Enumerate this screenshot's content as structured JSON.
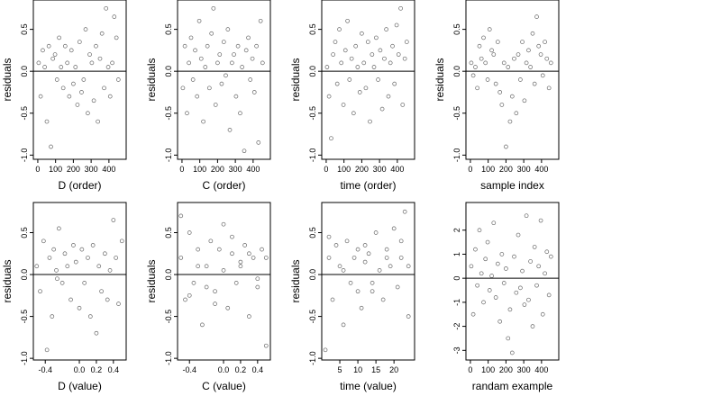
{
  "chart_data": [
    {
      "type": "scatter",
      "xlabel": "D (order)",
      "ylabel": "residuals",
      "color": "#333333",
      "hline": 0,
      "xlim": [
        -25,
        497
      ],
      "ylim": [
        -1.05,
        0.85
      ],
      "xticks": [
        0,
        100,
        200,
        300,
        400
      ],
      "yticks": [
        {
          "value": -1,
          "label": "-1.0"
        },
        {
          "value": -0.5,
          "label": "-0.5"
        },
        {
          "value": 0,
          "label": "0.0"
        },
        {
          "value": 0.5,
          "label": "0.5"
        }
      ],
      "x": [
        5,
        16,
        28,
        39,
        51,
        62,
        74,
        85,
        97,
        108,
        120,
        131,
        143,
        154,
        166,
        177,
        189,
        200,
        212,
        223,
        235,
        246,
        258,
        269,
        281,
        292,
        304,
        315,
        327,
        338,
        350,
        361,
        373,
        384,
        396,
        407,
        419,
        430,
        442,
        453
      ],
      "y": [
        0.1,
        -0.3,
        0.25,
        0.05,
        -0.6,
        0.3,
        -0.9,
        0.15,
        0.2,
        -0.1,
        0.4,
        0.05,
        -0.2,
        0.3,
        0.1,
        -0.3,
        0.25,
        -0.15,
        0.05,
        -0.4,
        0.35,
        -0.25,
        -0.1,
        0.5,
        -0.5,
        0.2,
        0.1,
        -0.35,
        0.3,
        -0.6,
        0.15,
        0.45,
        -0.2,
        0.75,
        0.05,
        -0.3,
        0.1,
        0.65,
        0.4,
        -0.1
      ]
    },
    {
      "type": "scatter",
      "xlabel": "C (order)",
      "ylabel": "residuals",
      "color": "#333333",
      "hline": 0,
      "xlim": [
        -25,
        497
      ],
      "ylim": [
        -1.05,
        0.85
      ],
      "xticks": [
        0,
        100,
        200,
        300,
        400
      ],
      "yticks": [
        {
          "value": -1,
          "label": "-1.0"
        },
        {
          "value": -0.5,
          "label": "-0.5"
        },
        {
          "value": 0,
          "label": "0.0"
        },
        {
          "value": 0.5,
          "label": "0.5"
        }
      ],
      "x": [
        5,
        16,
        28,
        39,
        51,
        62,
        74,
        85,
        97,
        108,
        120,
        131,
        143,
        154,
        166,
        177,
        189,
        200,
        212,
        223,
        235,
        246,
        258,
        269,
        281,
        292,
        304,
        315,
        327,
        338,
        350,
        361,
        373,
        384,
        396,
        407,
        419,
        430,
        442,
        453
      ],
      "y": [
        -0.2,
        0.3,
        -0.5,
        0.1,
        0.4,
        -0.1,
        0.25,
        -0.3,
        0.6,
        0.15,
        -0.6,
        0.05,
        0.3,
        -0.2,
        0.45,
        0.75,
        -0.4,
        0.1,
        0.2,
        -0.15,
        0.35,
        -0.05,
        0.5,
        -0.7,
        0.1,
        0.2,
        -0.3,
        0.3,
        -0.5,
        0.05,
        -0.95,
        0.25,
        0.4,
        -0.1,
        0.15,
        -0.25,
        0.3,
        -0.85,
        0.6,
        0.1
      ]
    },
    {
      "type": "scatter",
      "xlabel": "time (order)",
      "ylabel": "residuals",
      "color": "#333333",
      "hline": 0,
      "xlim": [
        -25,
        497
      ],
      "ylim": [
        -1.05,
        0.85
      ],
      "xticks": [
        0,
        100,
        200,
        300,
        400
      ],
      "yticks": [
        {
          "value": -1,
          "label": "-1.0"
        },
        {
          "value": -0.5,
          "label": "-0.5"
        },
        {
          "value": 0,
          "label": "0.0"
        },
        {
          "value": 0.5,
          "label": "0.5"
        }
      ],
      "x": [
        5,
        16,
        28,
        39,
        51,
        62,
        74,
        85,
        97,
        108,
        120,
        131,
        143,
        154,
        166,
        177,
        189,
        200,
        212,
        223,
        235,
        246,
        258,
        269,
        281,
        292,
        304,
        315,
        327,
        338,
        350,
        361,
        373,
        384,
        396,
        407,
        419,
        430,
        442,
        453
      ],
      "y": [
        0.05,
        -0.3,
        -0.8,
        0.2,
        0.35,
        -0.15,
        0.5,
        0.1,
        -0.4,
        0.25,
        0.6,
        -0.1,
        0.15,
        -0.5,
        0.3,
        0.05,
        -0.25,
        0.45,
        0.1,
        -0.2,
        0.35,
        -0.6,
        0.2,
        0.05,
        0.4,
        -0.1,
        0.25,
        -0.45,
        0.15,
        0.5,
        -0.3,
        0.1,
        0.3,
        -0.15,
        0.55,
        0.2,
        0.75,
        -0.4,
        0.15,
        0.35
      ]
    },
    {
      "type": "scatter",
      "xlabel": "sample index",
      "ylabel": "residuals",
      "color": "#333333",
      "hline": 0,
      "xlim": [
        -25,
        497
      ],
      "ylim": [
        -1.05,
        0.85
      ],
      "xticks": [
        0,
        100,
        200,
        300,
        400
      ],
      "yticks": [
        {
          "value": -1,
          "label": "-1.0"
        },
        {
          "value": -0.5,
          "label": "-0.5"
        },
        {
          "value": 0,
          "label": "0.0"
        },
        {
          "value": 0.5,
          "label": "0.5"
        }
      ],
      "x": [
        5,
        16,
        28,
        39,
        51,
        62,
        74,
        85,
        97,
        108,
        120,
        131,
        143,
        154,
        166,
        177,
        189,
        200,
        212,
        223,
        235,
        246,
        258,
        269,
        281,
        292,
        304,
        315,
        327,
        338,
        350,
        361,
        373,
        384,
        396,
        407,
        419,
        430,
        442,
        453
      ],
      "y": [
        0.1,
        -0.05,
        0.05,
        -0.2,
        0.3,
        0.15,
        0.4,
        0.1,
        -0.1,
        0.5,
        0.25,
        0.2,
        -0.15,
        0.35,
        -0.25,
        -0.4,
        0.1,
        -0.9,
        0.05,
        -0.6,
        -0.3,
        0.15,
        -0.5,
        0.2,
        -0.1,
        0.35,
        -0.35,
        0.1,
        0.25,
        0.05,
        0.45,
        -0.15,
        0.65,
        0.3,
        0.2,
        -0.05,
        0.35,
        0.15,
        -0.2,
        0.1
      ]
    },
    {
      "type": "scatter",
      "xlabel": "D (value)",
      "ylabel": "residuals",
      "color": "#333333",
      "hline": 0,
      "xlim": [
        -0.54,
        0.55
      ],
      "ylim": [
        -1.02,
        0.86
      ],
      "xticks": [
        -0.4,
        {
          "value": 0,
          "label": "0.0"
        },
        0.2,
        0.4
      ],
      "yticks": [
        {
          "value": -1,
          "label": "-1.0"
        },
        {
          "value": -0.5,
          "label": "-0.5"
        },
        {
          "value": 0,
          "label": "0.0"
        },
        {
          "value": 0.5,
          "label": "0.5"
        }
      ],
      "x": [
        -0.5,
        -0.46,
        -0.42,
        -0.38,
        -0.35,
        -0.32,
        -0.3,
        -0.27,
        -0.24,
        -0.2,
        -0.17,
        -0.14,
        -0.1,
        -0.07,
        -0.04,
        0,
        0.03,
        0.06,
        0.1,
        0.13,
        0.16,
        0.2,
        0.23,
        0.26,
        0.3,
        0.33,
        0.36,
        0.4,
        0.43,
        0.46,
        0.5,
        -0.26
      ],
      "y": [
        0.1,
        -0.2,
        0.4,
        -0.9,
        0.2,
        -0.5,
        0.3,
        0.05,
        0.55,
        -0.1,
        0.25,
        0.1,
        -0.3,
        0.35,
        0.15,
        -0.4,
        0.3,
        -0.1,
        0.2,
        -0.5,
        0.35,
        -0.7,
        0.1,
        -0.2,
        0.25,
        -0.3,
        0.05,
        0.65,
        0.2,
        -0.35,
        0.4,
        -0.05
      ]
    },
    {
      "type": "scatter",
      "xlabel": "C (value)",
      "ylabel": "residuals",
      "color": "#333333",
      "hline": 0,
      "xlim": [
        -0.54,
        0.55
      ],
      "ylim": [
        -1.02,
        0.86
      ],
      "xticks": [
        -0.4,
        {
          "value": 0,
          "label": "0.0"
        },
        0.2,
        0.4
      ],
      "yticks": [
        {
          "value": -1,
          "label": "-1.0"
        },
        {
          "value": -0.5,
          "label": "-0.5"
        },
        {
          "value": 0,
          "label": "0.0"
        },
        {
          "value": 0.5,
          "label": "0.5"
        }
      ],
      "x": [
        -0.5,
        -0.45,
        -0.4,
        -0.35,
        -0.3,
        -0.25,
        -0.2,
        -0.15,
        -0.1,
        -0.05,
        0,
        0.05,
        0.1,
        0.15,
        0.2,
        0.25,
        0.3,
        0.35,
        0.4,
        0.45,
        0.5,
        -0.5,
        -0.3,
        -0.1,
        0.1,
        0.3,
        0.5,
        -0.4,
        0,
        0.4,
        -0.2,
        0.2
      ],
      "y": [
        0.2,
        -0.3,
        0.5,
        -0.1,
        0.3,
        -0.6,
        0.1,
        0.4,
        -0.2,
        0.3,
        0.05,
        -0.4,
        0.25,
        -0.1,
        0.15,
        0.35,
        -0.5,
        0.2,
        -0.15,
        0.3,
        -0.85,
        0.7,
        0.1,
        -0.35,
        0.45,
        0.25,
        0.2,
        -0.25,
        0.6,
        -0.05,
        -0.15,
        0.1
      ]
    },
    {
      "type": "scatter",
      "xlabel": "time (value)",
      "ylabel": "residuals",
      "color": "#333333",
      "hline": 0,
      "xlim": [
        0,
        25.7
      ],
      "ylim": [
        -1.02,
        0.86
      ],
      "xticks": [
        5,
        10,
        15,
        20
      ],
      "yticks": [
        {
          "value": -1,
          "label": "-1.0"
        },
        {
          "value": -0.5,
          "label": "-0.5"
        },
        {
          "value": 0,
          "label": "0.0"
        },
        {
          "value": 0.5,
          "label": "0.5"
        }
      ],
      "x": [
        1,
        2,
        3,
        4,
        5,
        6,
        7,
        8,
        9,
        10,
        11,
        12,
        13,
        14,
        15,
        16,
        17,
        18,
        19,
        20,
        21,
        22,
        23,
        24,
        2,
        6,
        10,
        12,
        14,
        18,
        22,
        24
      ],
      "y": [
        -0.9,
        0.2,
        -0.3,
        0.35,
        0.1,
        -0.6,
        0.4,
        -0.1,
        0.2,
        0.3,
        -0.4,
        0.15,
        0.25,
        -0.2,
        0.5,
        0.05,
        -0.3,
        0.3,
        0.1,
        0.55,
        -0.15,
        0.2,
        0.75,
        -0.5,
        0.45,
        0.05,
        -0.2,
        0.35,
        -0.1,
        0.2,
        0.4,
        0.1
      ]
    },
    {
      "type": "scatter",
      "xlabel": "randam example",
      "color": "#333333",
      "hline": 0,
      "xlim": [
        -25,
        497
      ],
      "ylim": [
        -3.4,
        3.15
      ],
      "xticks": [
        0,
        100,
        200,
        300,
        400
      ],
      "yticks": [
        -3,
        -2,
        -1,
        0,
        1,
        2
      ],
      "x": [
        5,
        16,
        28,
        39,
        51,
        62,
        74,
        85,
        97,
        108,
        120,
        131,
        143,
        154,
        166,
        177,
        189,
        200,
        212,
        223,
        235,
        246,
        258,
        269,
        281,
        292,
        304,
        315,
        327,
        338,
        350,
        361,
        373,
        384,
        396,
        407,
        419,
        430,
        442,
        453
      ],
      "y": [
        0.5,
        -1.5,
        1.2,
        -0.3,
        2.0,
        0.2,
        -1.0,
        0.8,
        1.5,
        -0.5,
        0.1,
        2.3,
        -0.8,
        0.6,
        -1.8,
        1.0,
        -0.2,
        0.4,
        -2.5,
        -1.3,
        -3.1,
        0.9,
        -0.6,
        1.8,
        -0.4,
        0.3,
        -1.1,
        2.6,
        -0.9,
        0.7,
        -2.0,
        1.3,
        -0.3,
        0.5,
        2.4,
        -1.5,
        0.2,
        1.1,
        -0.7,
        0.9
      ]
    }
  ]
}
